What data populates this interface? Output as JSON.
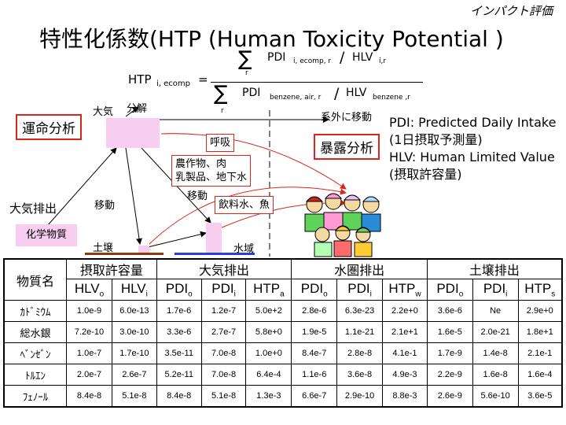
{
  "header": {
    "subtitle": "インパクト評価",
    "title": "特性化係数(HTP (Human Toxicity Potential )"
  },
  "formula": {
    "lhs": "HTP",
    "lhs_sub": "i, ecomp",
    "equals": "=",
    "sum": "∑",
    "sum_index": "r",
    "num_pdi": "PDI",
    "num_pdi_sub": "i, ecomp, r",
    "num_hlv": "HLV",
    "num_hlv_sub": "i,r",
    "den_pdi": "PDI",
    "den_pdi_sub": "benzene, air, r",
    "den_hlv": "HLV",
    "den_hlv_sub": "benzene ,r",
    "slash": "/"
  },
  "diagram": {
    "atmosphere": "大気",
    "decomposition": "分解",
    "fate_analysis": "運命分析",
    "exposure_analysis": "暴露分析",
    "out_of_system": "系外に移動",
    "respiration": "呼吸",
    "crops": "農作物、肉\n乳製品、地下水",
    "move_label_1": "移動",
    "move_label_2": "移動",
    "drinking_water": "飲料水、魚",
    "air_emission": "大気排出",
    "chemical": "化学物質",
    "soil": "土壌",
    "water": "水域"
  },
  "definitions": {
    "pdi": "PDI: Predicted Daily Intake",
    "pdi_jp": "(1日摂取予測量)",
    "hlv": "HLV: Human Limited Value",
    "hlv_jp": "(摂取許容量)"
  },
  "table": {
    "header_substance": "物質名",
    "groups": [
      "摂取許容量",
      "大気排出",
      "水圏排出",
      "土壌排出"
    ],
    "columns": [
      {
        "b": "HLV",
        "s": "o"
      },
      {
        "b": "HLV",
        "s": "i"
      },
      {
        "b": "PDI",
        "s": "o"
      },
      {
        "b": "PDI",
        "s": "i"
      },
      {
        "b": "HTP",
        "s": "a"
      },
      {
        "b": "PDI",
        "s": "o"
      },
      {
        "b": "PDI",
        "s": "i"
      },
      {
        "b": "HTP",
        "s": "w"
      },
      {
        "b": "PDI",
        "s": "o"
      },
      {
        "b": "PDI",
        "s": "i"
      },
      {
        "b": "HTP",
        "s": "s"
      }
    ],
    "rows": [
      {
        "name": "ｶﾄﾞﾐｳﾑ",
        "values": [
          "1.0e-9",
          "6.0e-13",
          "1.7e-6",
          "1.2e-7",
          "5.0e+2",
          "2.8e-6",
          "6.3e-23",
          "2.2e+0",
          "3.6e-6",
          "Ne",
          "2.9e+0"
        ]
      },
      {
        "name": "総水銀",
        "values": [
          "7.2e-10",
          "3.0e-10",
          "3.3e-6",
          "2.7e-7",
          "5.8e+0",
          "1.9e-5",
          "1.1e-21",
          "2.1e+1",
          "1.6e-5",
          "2.0e-21",
          "1.8e+1"
        ]
      },
      {
        "name": "ﾍﾞﾝｾﾞﾝ",
        "values": [
          "1.0e-7",
          "1.7e-10",
          "3.5e-11",
          "7.0e-8",
          "1.0e+0",
          "8.4e-7",
          "2.8e-8",
          "4.1e-1",
          "1.7e-9",
          "1.4e-8",
          "2.1e-1"
        ]
      },
      {
        "name": "ﾄﾙｴﾝ",
        "values": [
          "2.0e-7",
          "2.6e-7",
          "5.2e-11",
          "7.0e-8",
          "6.4e-4",
          "1.1e-6",
          "3.6e-8",
          "4.9e-3",
          "2.2e-9",
          "1.6e-8",
          "1.6e-4"
        ]
      },
      {
        "name": "ﾌｪﾉｰﾙ",
        "values": [
          "8.4e-8",
          "5.1e-8",
          "8.4e-8",
          "5.1e-8",
          "1.3e-3",
          "6.6e-7",
          "2.9e-10",
          "8.8e-3",
          "2.6e-9",
          "5.6e-10",
          "3.6e-5"
        ]
      }
    ]
  },
  "colors": {
    "accent_red": "#d9261c",
    "pink": "#f7cdf0",
    "soil_line": "#8b3a0a",
    "water_line": "#2a3fd6"
  }
}
